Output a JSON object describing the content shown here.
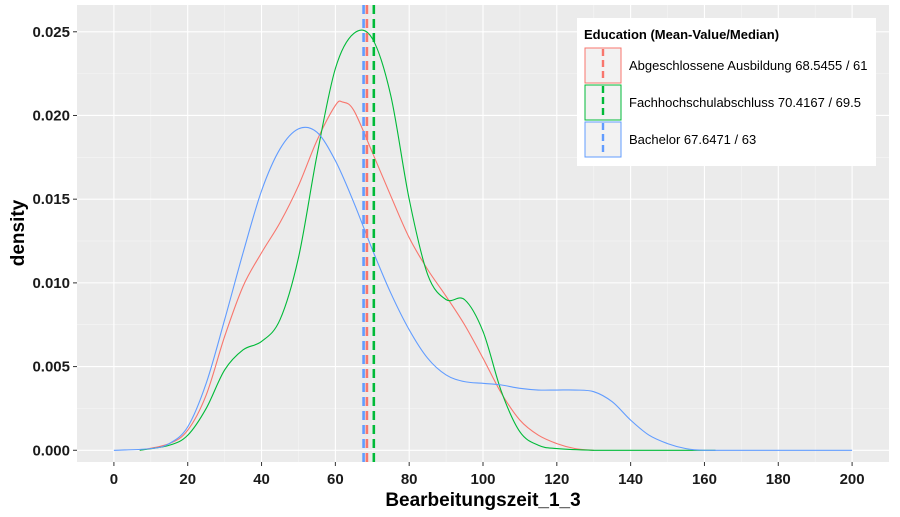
{
  "chart_data": {
    "type": "line",
    "subtype": "density",
    "xlabel": "Bearbeitungszeit_1_3",
    "ylabel": "density",
    "xlim": [
      -10,
      210
    ],
    "ylim": [
      -0.0007,
      0.0266
    ],
    "x_ticks": [
      0,
      20,
      40,
      60,
      80,
      100,
      120,
      140,
      160,
      180,
      200
    ],
    "y_ticks": [
      0.0,
      0.005,
      0.01,
      0.015,
      0.02,
      0.025
    ],
    "y_tick_labels": [
      "0.000",
      "0.005",
      "0.010",
      "0.015",
      "0.020",
      "0.025"
    ],
    "grid": true,
    "legend_position": "top-right",
    "legend_title": "Education (Mean-Value/Median)",
    "series": [
      {
        "name": "Abgeschlossene Ausbildung 68.5455 / 61",
        "color": "#F8766D",
        "mean": 68.5455,
        "median": 61,
        "x": [
          7,
          15,
          20,
          25,
          30,
          35,
          40,
          45,
          50,
          55,
          60,
          62,
          65,
          70,
          75,
          80,
          85,
          90,
          95,
          100,
          105,
          110,
          115,
          120,
          125,
          130
        ],
        "y": [
          0.0,
          0.0004,
          0.0012,
          0.0033,
          0.0068,
          0.0098,
          0.0118,
          0.0136,
          0.0158,
          0.0185,
          0.0206,
          0.0208,
          0.0203,
          0.0178,
          0.0152,
          0.0127,
          0.0108,
          0.0092,
          0.0075,
          0.0055,
          0.0034,
          0.0018,
          0.0009,
          0.0004,
          0.0001,
          0.0
        ]
      },
      {
        "name": "Fachhochschulabschluss 70.4167 / 69.5",
        "color": "#00BA38",
        "mean": 70.4167,
        "median": 69.5,
        "x": [
          7,
          15,
          20,
          25,
          30,
          35,
          40,
          45,
          50,
          55,
          60,
          65,
          70,
          75,
          80,
          85,
          90,
          95,
          100,
          105,
          110,
          115,
          120,
          130,
          140,
          150,
          160,
          163
        ],
        "y": [
          0.0,
          0.0003,
          0.0009,
          0.0025,
          0.0048,
          0.006,
          0.0065,
          0.0078,
          0.0115,
          0.0176,
          0.0228,
          0.0249,
          0.0246,
          0.0212,
          0.015,
          0.0105,
          0.009,
          0.009,
          0.0071,
          0.0035,
          0.0011,
          0.0003,
          0.0001,
          0.0,
          0.0,
          0.0,
          0.0,
          0.0
        ]
      },
      {
        "name": "Bachelor 67.6471 / 63",
        "color": "#619CFF",
        "mean": 67.6471,
        "median": 63,
        "x": [
          0,
          10,
          15,
          20,
          25,
          30,
          35,
          40,
          45,
          50,
          55,
          60,
          65,
          70,
          75,
          80,
          85,
          90,
          95,
          100,
          105,
          110,
          115,
          120,
          125,
          130,
          135,
          140,
          145,
          150,
          155,
          160,
          170,
          180,
          190,
          200
        ],
        "y": [
          0.0,
          0.0001,
          0.0004,
          0.0014,
          0.004,
          0.0078,
          0.0118,
          0.0155,
          0.018,
          0.0192,
          0.019,
          0.0173,
          0.0148,
          0.012,
          0.0094,
          0.0072,
          0.0055,
          0.0045,
          0.0041,
          0.004,
          0.0039,
          0.0037,
          0.0036,
          0.0036,
          0.0036,
          0.0035,
          0.0029,
          0.0018,
          0.0009,
          0.0004,
          0.0001,
          0.0,
          0.0,
          0.0,
          0.0,
          0.0
        ]
      }
    ]
  }
}
